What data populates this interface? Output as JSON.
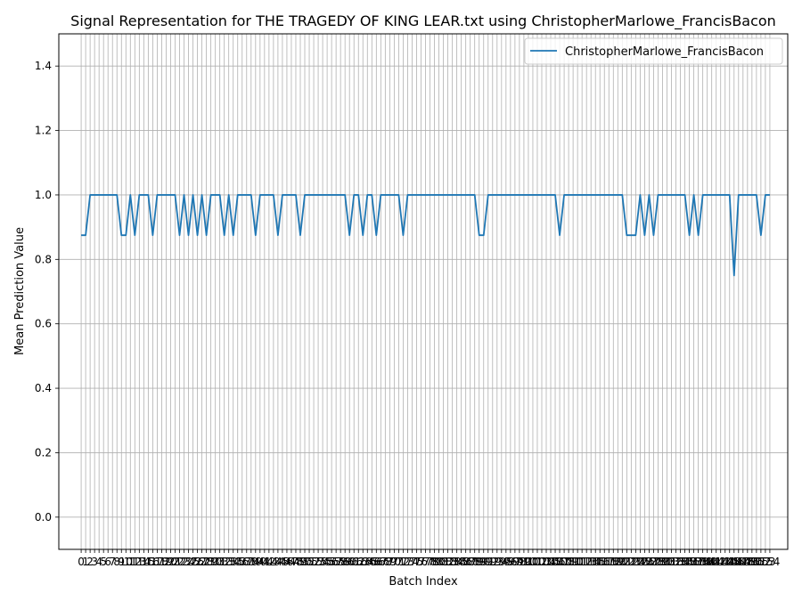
{
  "chart_data": {
    "type": "line",
    "title": "Signal Representation for THE TRAGEDY OF KING LEAR.txt using ChristopherMarlowe_FrancisBacon",
    "xlabel": "Batch Index",
    "ylabel": "Mean Prediction Value",
    "xlim": [
      -5,
      158
    ],
    "ylim": [
      -0.1,
      1.5
    ],
    "yticks": [
      0.0,
      0.2,
      0.4,
      0.6,
      0.8,
      1.0,
      1.2,
      1.4
    ],
    "ytick_labels": [
      "0.0",
      "0.2",
      "0.4",
      "0.6",
      "0.8",
      "1.0",
      "1.2",
      "1.4"
    ],
    "x_start": 0,
    "grid": true,
    "legend_position": "top-right",
    "line_color": "#1f77b4",
    "series": [
      {
        "name": "ChristopherMarlowe_FrancisBacon",
        "values": [
          0.875,
          0.875,
          1,
          1,
          1,
          1,
          1,
          1,
          1,
          0.875,
          0.875,
          1,
          0.875,
          1,
          1,
          1,
          0.875,
          1,
          1,
          1,
          1,
          1,
          0.875,
          1,
          0.875,
          1,
          0.875,
          1,
          0.875,
          1,
          1,
          1,
          0.875,
          1,
          0.875,
          1,
          1,
          1,
          1,
          0.875,
          1,
          1,
          1,
          1,
          0.875,
          1,
          1,
          1,
          1,
          0.875,
          1,
          1,
          1,
          1,
          1,
          1,
          1,
          1,
          1,
          1,
          0.875,
          1,
          1,
          0.875,
          1,
          1,
          0.875,
          1,
          1,
          1,
          1,
          1,
          0.875,
          1,
          1,
          1,
          1,
          1,
          1,
          1,
          1,
          1,
          1,
          1,
          1,
          1,
          1,
          1,
          1,
          0.875,
          0.875,
          1,
          1,
          1,
          1,
          1,
          1,
          1,
          1,
          1,
          1,
          1,
          1,
          1,
          1,
          1,
          1,
          0.875,
          1,
          1,
          1,
          1,
          1,
          1,
          1,
          1,
          1,
          1,
          1,
          1,
          1,
          1,
          0.875,
          0.875,
          0.875,
          1,
          0.875,
          1,
          0.875,
          1,
          1,
          1,
          1,
          1,
          1,
          1,
          0.875,
          1,
          0.875,
          1,
          1,
          1,
          1,
          1,
          1,
          1,
          0.75,
          1,
          1,
          1,
          1,
          1,
          0.875,
          1,
          1
        ]
      }
    ]
  }
}
